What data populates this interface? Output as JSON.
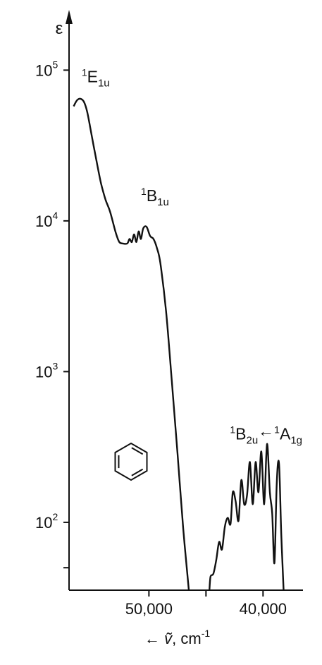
{
  "chart_data": {
    "type": "line",
    "title": "",
    "y_scale": "log",
    "x_direction": "decreasing-left-to-right",
    "ylabel": "ε",
    "xlabel": "ṽ, cm⁻¹",
    "xlabel_parts": {
      "arrow": "←",
      "symbol": "ṽ",
      "sep": ", ",
      "unit": "cm",
      "exp": "-1"
    },
    "xlim": [
      57000,
      36500
    ],
    "ylim_log10": [
      1.55,
      5.1
    ],
    "x_ticks": [
      {
        "value": 50000,
        "label": "50,000"
      },
      {
        "value": 45000,
        "label": ""
      },
      {
        "value": 40000,
        "label": "40,000"
      }
    ],
    "y_ticks": [
      {
        "exp": 5,
        "base": "10",
        "sup": "5"
      },
      {
        "exp": 4,
        "base": "10",
        "sup": "4"
      },
      {
        "exp": 3,
        "base": "10",
        "sup": "3"
      },
      {
        "exp": 2,
        "base": "10",
        "sup": "2"
      },
      {
        "exp": 1.699,
        "base": "",
        "sup": ""
      }
    ],
    "annotations": [
      {
        "id": "e1u",
        "pre": "1",
        "main": "E",
        "sub": "1u",
        "x": 55900,
        "log10y": 4.92
      },
      {
        "id": "b1u",
        "pre": "1",
        "main": "B",
        "sub": "1u",
        "x": 50700,
        "log10y": 4.13
      },
      {
        "id": "b2u",
        "pre": "1",
        "main": "B",
        "sub": "2u",
        "arrow": "←",
        "pre2": "1",
        "main2": "A",
        "sub2": "1g",
        "x": 42900,
        "log10y": 2.55
      }
    ],
    "series": [
      {
        "segments": [
          [
            [
              56600,
              4.76
            ],
            [
              56300,
              4.8
            ],
            [
              56000,
              4.81
            ],
            [
              55700,
              4.79
            ],
            [
              55400,
              4.72
            ],
            [
              55000,
              4.56
            ],
            [
              54600,
              4.4
            ],
            [
              54200,
              4.25
            ],
            [
              53800,
              4.14
            ],
            [
              53400,
              4.06
            ],
            [
              52900,
              3.92
            ],
            [
              52600,
              3.86
            ],
            [
              52300,
              3.85
            ],
            [
              51900,
              3.85
            ],
            [
              51700,
              3.88
            ],
            [
              51500,
              3.86
            ],
            [
              51300,
              3.91
            ],
            [
              51100,
              3.86
            ],
            [
              50900,
              3.93
            ],
            [
              50700,
              3.88
            ],
            [
              50500,
              3.95
            ],
            [
              50200,
              3.96
            ],
            [
              49900,
              3.9
            ],
            [
              49600,
              3.88
            ],
            [
              49300,
              3.82
            ],
            [
              49000,
              3.72
            ],
            [
              48500,
              3.4
            ],
            [
              48000,
              2.94
            ],
            [
              47500,
              2.46
            ],
            [
              47000,
              1.96
            ],
            [
              46500,
              1.55
            ]
          ],
          [
            [
              44700,
              1.55
            ],
            [
              44600,
              1.64
            ],
            [
              44350,
              1.66
            ],
            [
              44100,
              1.75
            ],
            [
              43850,
              1.87
            ],
            [
              43600,
              1.82
            ],
            [
              43350,
              1.97
            ],
            [
              43100,
              2.03
            ],
            [
              42850,
              1.99
            ],
            [
              42650,
              2.2
            ],
            [
              42400,
              2.14
            ],
            [
              42150,
              2.01
            ],
            [
              41900,
              2.28
            ],
            [
              41650,
              2.12
            ],
            [
              41400,
              2.18
            ],
            [
              41150,
              2.4
            ],
            [
              40900,
              2.12
            ],
            [
              40650,
              2.4
            ],
            [
              40400,
              2.2
            ],
            [
              40150,
              2.47
            ],
            [
              39900,
              2.12
            ],
            [
              39650,
              2.52
            ],
            [
              39400,
              2.2
            ],
            [
              39200,
              2.06
            ],
            [
              39000,
              1.73
            ],
            [
              38800,
              2.26
            ],
            [
              38600,
              2.39
            ],
            [
              38400,
              1.92
            ],
            [
              38200,
              1.55
            ]
          ]
        ]
      }
    ],
    "inset": {
      "type": "benzene-structure"
    }
  }
}
